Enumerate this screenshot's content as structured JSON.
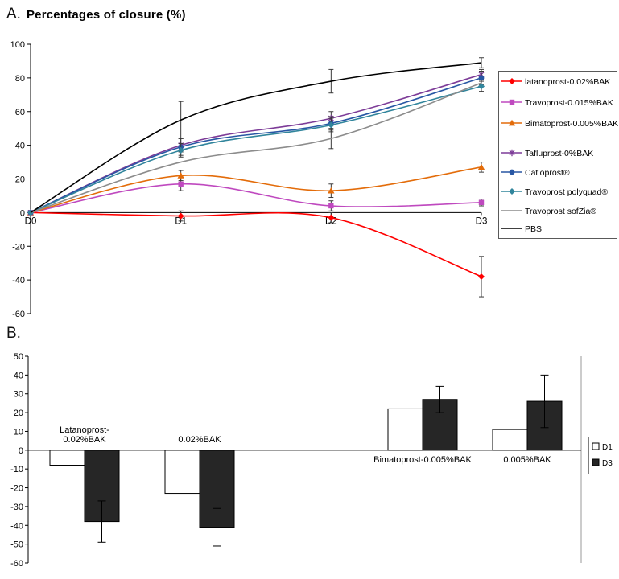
{
  "figure": {
    "panelA_label": "A.",
    "panelB_label": "B."
  },
  "chart_data": [
    {
      "panel": "A",
      "type": "line",
      "title": "Percentages of closure (%)",
      "xlabel": "",
      "ylabel": "",
      "x_categories": [
        "D0",
        "D1",
        "D2",
        "D3"
      ],
      "ylim": [
        -60,
        100
      ],
      "ytick_step": 20,
      "grid": false,
      "legend_position": "right",
      "series": [
        {
          "name": "latanoprost-0.02%BAK",
          "color": "#FF0000",
          "marker": "diamond",
          "values": [
            0,
            -2,
            -3,
            -38
          ],
          "errors": [
            0,
            3,
            3,
            12
          ]
        },
        {
          "name": "Travoprost-0.015%BAK",
          "color": "#BF49BF",
          "marker": "square",
          "values": [
            0,
            17,
            4,
            6
          ],
          "errors": [
            0,
            4,
            3,
            2
          ]
        },
        {
          "name": "Bimatoprost-0.005%BAK",
          "color": "#E36C0A",
          "marker": "triangle",
          "values": [
            0,
            22,
            13,
            27
          ],
          "errors": [
            0,
            3,
            4,
            3
          ]
        },
        {
          "name": "Tafluprost-0%BAK",
          "color": "#7D3C98",
          "marker": "asterisk",
          "values": [
            0,
            40,
            56,
            82
          ],
          "errors": [
            0,
            4,
            4,
            3
          ]
        },
        {
          "name": "Catioprost®",
          "color": "#2857A4",
          "marker": "circle",
          "values": [
            0,
            39,
            53,
            80
          ],
          "errors": [
            0,
            5,
            4,
            4
          ]
        },
        {
          "name": "Travoprost polyquad®",
          "color": "#31859C",
          "marker": "diamond",
          "values": [
            0,
            37,
            52,
            75
          ],
          "errors": [
            0,
            4,
            4,
            3
          ]
        },
        {
          "name": "Travoprost sofZia®",
          "color": "#8C8C8C",
          "marker": "none",
          "values": [
            0,
            30,
            44,
            77
          ],
          "errors": [
            0,
            0,
            6,
            0
          ]
        },
        {
          "name": "PBS",
          "color": "#000000",
          "marker": "none",
          "values": [
            0,
            55,
            78,
            89
          ],
          "errors": [
            0,
            11,
            7,
            3
          ]
        }
      ]
    },
    {
      "panel": "B",
      "type": "bar",
      "title": "",
      "ylim": [
        -60,
        50
      ],
      "ytick_step": 10,
      "grid": false,
      "legend": [
        "D1",
        "D3"
      ],
      "bar_colors": {
        "D1": "#FFFFFF",
        "D3": "#262626"
      },
      "groups": [
        {
          "name": "Latanoprost-0.02%BAK",
          "label_lines": [
            "Latanoprost-",
            "0.02%BAK"
          ],
          "label_side": "above",
          "values": {
            "D1": -8,
            "D3": -38
          },
          "errors": {
            "D3": 11
          }
        },
        {
          "name": "0.02%BAK",
          "label_lines": [
            "0.02%BAK"
          ],
          "label_side": "above",
          "values": {
            "D1": -23,
            "D3": -41
          },
          "errors": {
            "D3": 10
          }
        },
        {
          "name": "Bimatoprost-0.005%BAK",
          "label_lines": [
            "Bimatoprost-0.005%BAK"
          ],
          "label_side": "below",
          "values": {
            "D1": 22,
            "D3": 27
          },
          "errors": {
            "D3": 7
          }
        },
        {
          "name": "0.005%BAK",
          "label_lines": [
            "0.005%BAK"
          ],
          "label_side": "below",
          "values": {
            "D1": 11,
            "D3": 26
          },
          "errors": {
            "D3": 14
          }
        }
      ]
    }
  ]
}
